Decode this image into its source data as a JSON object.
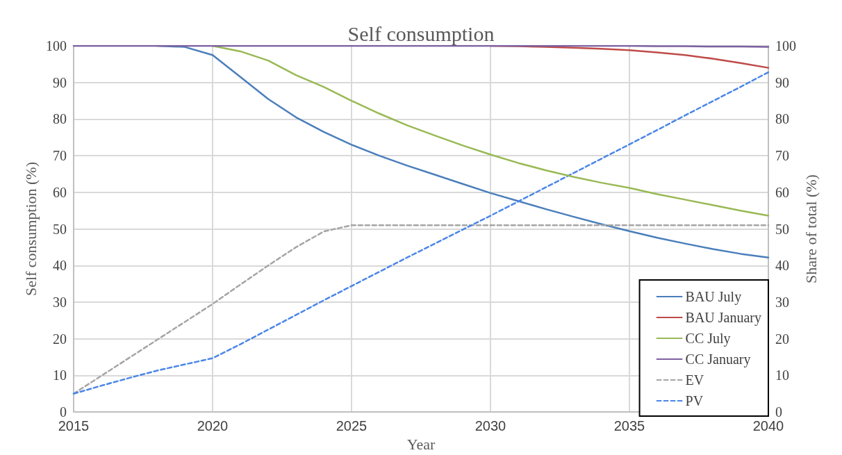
{
  "chart_data": {
    "type": "line",
    "title": "Self consumption",
    "xlabel": "Year",
    "ylabel": "Self consumption (%)",
    "y2label": "Share of total (%)",
    "x": [
      2015,
      2016,
      2017,
      2018,
      2019,
      2020,
      2021,
      2022,
      2023,
      2024,
      2025,
      2026,
      2027,
      2028,
      2029,
      2030,
      2031,
      2032,
      2033,
      2034,
      2035,
      2036,
      2037,
      2038,
      2039,
      2040
    ],
    "series": [
      {
        "name": "BAU July",
        "color": "#4a7ebb",
        "line_style": "solid",
        "values": [
          null,
          null,
          null,
          100,
          99.7,
          97.5,
          91.5,
          85.5,
          80.5,
          76.5,
          73,
          70,
          67.3,
          64.8,
          62.3,
          59.8,
          57.6,
          55.4,
          53.3,
          51.3,
          49.4,
          47.6,
          46,
          44.5,
          43.2,
          42.2
        ]
      },
      {
        "name": "BAU January",
        "color": "#be4b48",
        "line_style": "solid",
        "values": [
          null,
          null,
          null,
          null,
          null,
          null,
          null,
          null,
          null,
          null,
          null,
          null,
          null,
          null,
          null,
          100,
          99.9,
          99.7,
          99.5,
          99.2,
          98.8,
          98.2,
          97.5,
          96.5,
          95.3,
          94
        ]
      },
      {
        "name": "CC July",
        "color": "#98b954",
        "line_style": "solid",
        "values": [
          null,
          null,
          null,
          null,
          null,
          100,
          98.5,
          96,
          92,
          88.8,
          85,
          81.5,
          78.3,
          75.5,
          72.8,
          70.3,
          68,
          66,
          64.2,
          62.6,
          61.2,
          59.5,
          58,
          56.5,
          55,
          53.6
        ]
      },
      {
        "name": "CC January",
        "color": "#7d60a0",
        "line_style": "solid",
        "values": [
          100,
          100,
          100,
          100,
          100,
          100,
          100,
          100,
          100,
          100,
          100,
          100,
          100,
          100,
          100,
          100,
          100,
          100,
          100,
          100,
          100,
          99.9,
          99.9,
          99.8,
          99.8,
          99.7
        ]
      },
      {
        "name": "EV",
        "color": "#a5a5a5",
        "line_style": "dashed",
        "axis": "y2",
        "values": [
          5,
          9.9,
          14.8,
          19.7,
          24.6,
          29.5,
          34.8,
          40,
          45,
          49.3,
          51,
          51,
          51,
          51,
          51,
          51,
          51,
          51,
          51,
          51,
          51,
          51,
          51,
          51,
          51,
          51
        ]
      },
      {
        "name": "PV",
        "color": "#4a86e8",
        "line_style": "dashed",
        "axis": "y2",
        "values": [
          5,
          7.2,
          9.3,
          11.3,
          13,
          14.7,
          18.5,
          22.5,
          26.5,
          30.5,
          34.4,
          38.3,
          42.2,
          46,
          49.8,
          53.6,
          57.5,
          61.4,
          65.3,
          69.2,
          73.1,
          77,
          81,
          84.9,
          88.8,
          92.8
        ]
      }
    ],
    "xlim": [
      2015,
      2040
    ],
    "xticks": [
      2015,
      2020,
      2025,
      2030,
      2035,
      2040
    ],
    "ylim": [
      0,
      100
    ],
    "yticks": [
      0,
      10,
      20,
      30,
      40,
      50,
      60,
      70,
      80,
      90,
      100
    ],
    "y2lim": [
      0,
      100
    ],
    "y2ticks": [
      0,
      10,
      20,
      30,
      40,
      50,
      60,
      70,
      80,
      90,
      100
    ],
    "grid": true,
    "legend": "bottom right",
    "marker": "none"
  }
}
